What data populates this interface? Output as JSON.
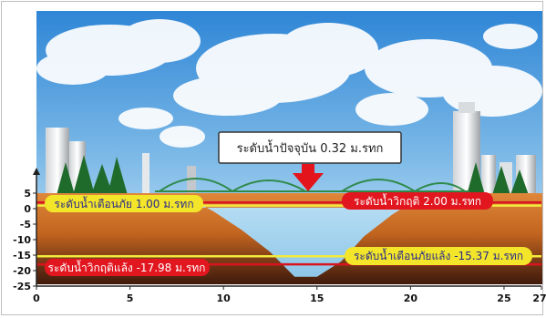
{
  "current_level": {
    "label": "ระดับน้ำปัจจุบัน 0.32 ม.รทก",
    "value": 0.32
  },
  "levels": {
    "flood_warning": {
      "label": "ระดับน้ำเตือนภัย 1.00 ม.รทก",
      "value": 1.0
    },
    "flood_critical": {
      "label": "ระดับน้ำวิกฤติ 2.00 ม.รทก",
      "value": 2.0
    },
    "drought_warning": {
      "label": "ระดับน้ำเตือนภัยแล้ง -15.37 ม.รทก",
      "value": -15.37
    },
    "drought_critical": {
      "label": "ระดับน้ำวิกฤติแล้ง -17.98 ม.รทก",
      "value": -17.98
    }
  },
  "axes": {
    "y_ticks": [
      "5",
      "0",
      "-5",
      "-10",
      "-15",
      "-20",
      "-25"
    ],
    "x_ticks": [
      "0",
      "5",
      "10",
      "15",
      "20",
      "25",
      "27"
    ],
    "y_range": [
      -25,
      5
    ],
    "x_range": [
      0,
      27
    ]
  },
  "colors": {
    "sky_top": "#4a9ee0",
    "sky_bottom": "#cfe6f7",
    "soil": "#d9782a",
    "soil_dark": "#5a2a12",
    "water": "#a8d4ee",
    "critical_line": "#d9141f",
    "warning_line": "#f2ea3c",
    "warning_badge": "#f3e52a",
    "critical_badge": "#e1161f",
    "bridge": "#2f8a4a",
    "arrow": "#e3141c"
  },
  "chart_data": {
    "type": "area",
    "title": "",
    "xlabel": "",
    "ylabel": "",
    "xlim": [
      0,
      27
    ],
    "ylim": [
      -25,
      5
    ],
    "x": [
      0,
      8.3,
      9.5,
      11,
      12.5,
      13.8,
      15,
      16.3,
      17.5,
      19,
      20.3,
      27
    ],
    "series": [
      {
        "values": [
          3,
          3,
          -1,
          -7,
          -14,
          -22,
          -22,
          -17,
          -9,
          -2,
          3,
          3
        ]
      }
    ],
    "reference_lines": [
      0.32,
      1.0,
      2.0,
      -15.37,
      -17.98
    ]
  }
}
